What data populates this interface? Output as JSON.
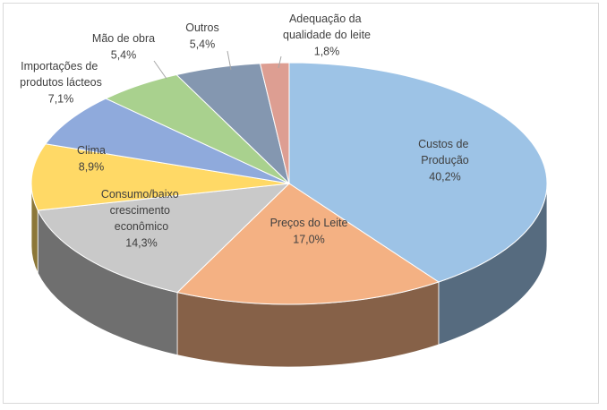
{
  "chart_data": {
    "type": "pie3d",
    "categories": [
      "Custos de Produção",
      "Preços do Leite",
      "Consumo/baixo crescimento econômico",
      "Clima",
      "Importações de produtos lácteos",
      "Mão de obra",
      "Outros",
      "Adequação da qualidade do leite"
    ],
    "values": [
      40.2,
      17.0,
      14.3,
      8.9,
      7.1,
      5.4,
      5.4,
      1.8
    ],
    "value_labels": [
      "40,2%",
      "17,0%",
      "14,3%",
      "8,9%",
      "7,1%",
      "5,4%",
      "5,4%",
      "1,8%"
    ],
    "colors": [
      "#9dc3e6",
      "#f4b183",
      "#c9c9c9",
      "#ffd966",
      "#8faadc",
      "#a9d18e",
      "#8497b0",
      "#dd9e92"
    ]
  }
}
